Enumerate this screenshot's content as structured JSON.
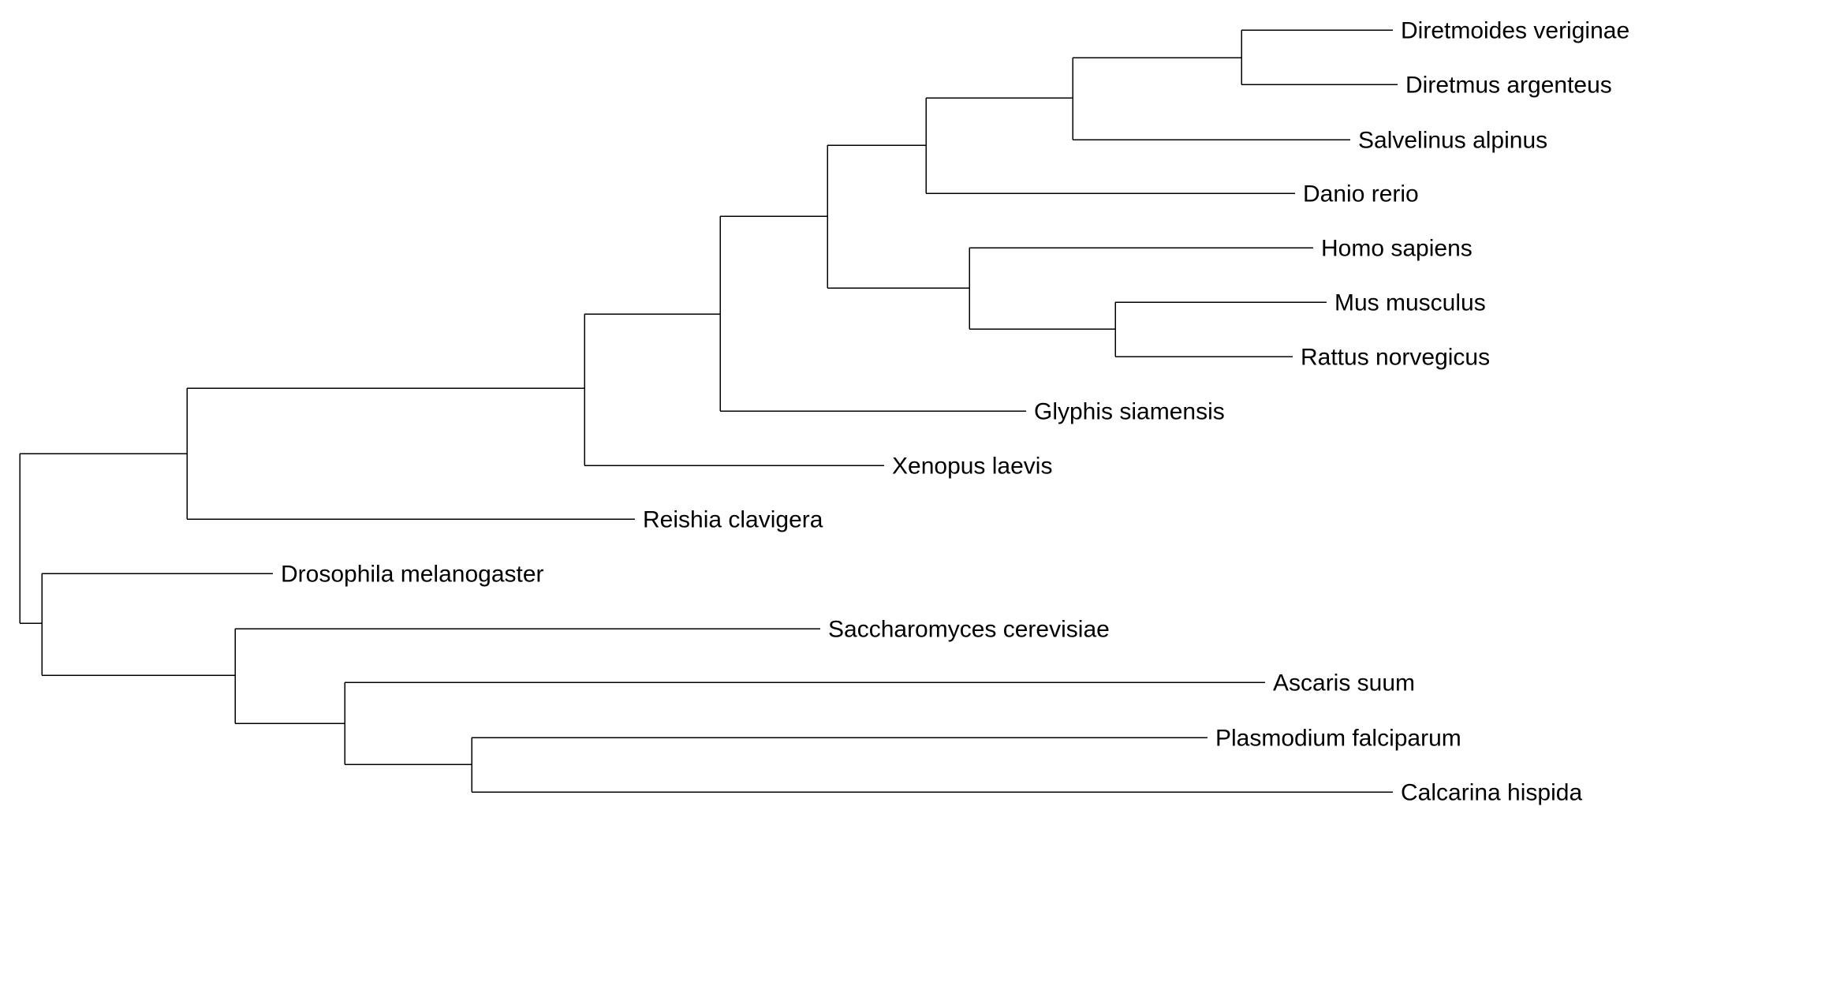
{
  "tree": {
    "line_color": "#000000",
    "background": "#ffffff",
    "taxa": [
      "Diretmoides veriginae",
      "Diretmus argenteus",
      "Salvelinus alpinus",
      "Danio rerio",
      "Homo sapiens",
      "Mus musculus",
      "Rattus norvegicus",
      "Glyphis siamensis",
      "Xenopus laevis",
      "Reishia clavigera",
      "Drosophila melanogaster",
      "Saccharomyces cerevisiae",
      "Ascaris suum",
      "Plasmodium falciparum",
      "Calcarina hispida"
    ]
  }
}
